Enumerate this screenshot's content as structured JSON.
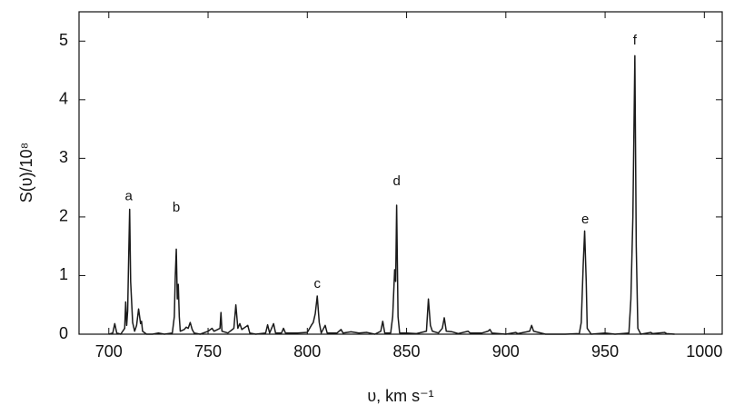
{
  "chart_data": {
    "type": "line",
    "y_label": "S(υ)/10⁸",
    "x_label": "υ, km s⁻¹",
    "xlim": [
      685,
      1009
    ],
    "ylim": [
      0,
      5.5
    ],
    "xticks": [
      700,
      750,
      800,
      850,
      900,
      950,
      1000
    ],
    "yticks": [
      0,
      1,
      2,
      3,
      4,
      5
    ],
    "annotations": [
      {
        "text": "a",
        "x": 710,
        "y": 2.35
      },
      {
        "text": "b",
        "x": 734,
        "y": 2.15
      },
      {
        "text": "c",
        "x": 805,
        "y": 0.85
      },
      {
        "text": "d",
        "x": 845,
        "y": 2.6
      },
      {
        "text": "e",
        "x": 940,
        "y": 1.95
      },
      {
        "text": "f",
        "x": 965,
        "y": 5.0
      }
    ],
    "x": [
      700,
      702,
      703,
      704,
      706,
      708,
      708.5,
      709,
      709.5,
      710,
      710.5,
      711,
      712,
      713,
      714,
      715,
      716,
      716.5,
      717,
      719,
      722,
      725,
      728,
      732,
      733,
      733.5,
      734,
      734.5,
      735,
      735.5,
      736,
      738,
      739,
      740,
      741,
      742,
      743,
      746,
      750,
      752,
      753,
      756,
      756.5,
      757,
      760,
      763,
      764,
      765,
      766,
      767,
      770,
      771,
      774,
      779,
      780,
      781,
      783,
      784,
      787,
      788,
      789,
      795,
      800,
      802,
      803,
      804,
      805,
      806,
      807,
      809,
      810,
      815,
      817,
      818,
      822,
      826,
      830,
      834,
      837,
      838,
      839,
      842,
      843,
      844,
      844.5,
      845,
      845.7,
      846.5,
      850,
      855,
      860,
      861,
      862,
      863,
      866,
      868,
      869,
      870,
      873,
      876,
      881,
      882,
      888,
      891,
      892,
      893,
      900,
      905,
      906,
      912,
      913,
      914,
      920,
      930,
      937,
      938,
      939,
      939.7,
      940.5,
      941,
      943,
      950,
      955,
      962,
      963,
      964,
      965,
      965.7,
      966.5,
      968,
      973,
      974,
      980,
      981,
      985
    ],
    "series": [
      {
        "color": "#1a1a1a",
        "values": [
          0,
          0.02,
          0.18,
          0.02,
          0,
          0.1,
          0.55,
          0.15,
          0.4,
          1.3,
          2.13,
          0.9,
          0.2,
          0.05,
          0.15,
          0.43,
          0.18,
          0.22,
          0.05,
          0,
          0,
          0.02,
          0,
          0.02,
          0.3,
          1.0,
          1.45,
          0.6,
          0.85,
          0.3,
          0.05,
          0.08,
          0.12,
          0.1,
          0.2,
          0.08,
          0.02,
          0,
          0.05,
          0.1,
          0.05,
          0.1,
          0.37,
          0.05,
          0.02,
          0.1,
          0.5,
          0.1,
          0.18,
          0.08,
          0.15,
          0.02,
          0,
          0.02,
          0.16,
          0.02,
          0.18,
          0.02,
          0.02,
          0.1,
          0.02,
          0.02,
          0.03,
          0.15,
          0.2,
          0.35,
          0.65,
          0.2,
          0.02,
          0.15,
          0.02,
          0.02,
          0.08,
          0.02,
          0.04,
          0.02,
          0.03,
          0,
          0.05,
          0.22,
          0.02,
          0.02,
          0.3,
          1.1,
          0.9,
          2.2,
          0.3,
          0.02,
          0.02,
          0.01,
          0.05,
          0.6,
          0.15,
          0.05,
          0.02,
          0.1,
          0.28,
          0.05,
          0.04,
          0.01,
          0.05,
          0.02,
          0.02,
          0.05,
          0.08,
          0.02,
          0,
          0.03,
          0.01,
          0.05,
          0.15,
          0.05,
          0,
          0,
          0.01,
          0.2,
          1.2,
          1.76,
          0.9,
          0.1,
          0,
          0.02,
          0,
          0.02,
          0.6,
          2,
          4.75,
          1.5,
          0.1,
          0,
          0.03,
          0.01,
          0.03,
          0.01,
          0
        ]
      }
    ]
  }
}
